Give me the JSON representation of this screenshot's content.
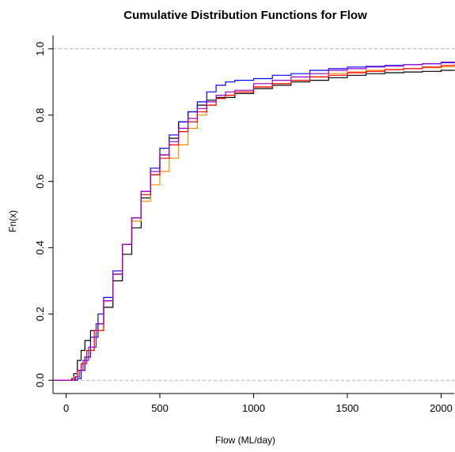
{
  "chart_data": {
    "type": "line",
    "title": "Cumulative Distribution Functions for Flow",
    "xlabel": "Flow (ML/day)",
    "ylabel": "Fn(x)",
    "xlim": [
      -70,
      2070
    ],
    "ylim": [
      -0.04,
      1.04
    ],
    "x_ticks": [
      0,
      500,
      1000,
      1500,
      2000
    ],
    "y_ticks": [
      0.0,
      0.2,
      0.4,
      0.6,
      0.8,
      1.0
    ],
    "reference_lines": [
      0,
      1
    ],
    "step": true,
    "series": [
      {
        "color": "#000000",
        "points": [
          [
            -70,
            0
          ],
          [
            20,
            0
          ],
          [
            30,
            0.005
          ],
          [
            40,
            0.02
          ],
          [
            60,
            0.06
          ],
          [
            80,
            0.09
          ],
          [
            100,
            0.12
          ],
          [
            130,
            0.15
          ],
          [
            160,
            0.17
          ],
          [
            200,
            0.22
          ],
          [
            250,
            0.3
          ],
          [
            300,
            0.38
          ],
          [
            350,
            0.46
          ],
          [
            400,
            0.55
          ],
          [
            450,
            0.62
          ],
          [
            500,
            0.68
          ],
          [
            550,
            0.73
          ],
          [
            600,
            0.78
          ],
          [
            650,
            0.81
          ],
          [
            700,
            0.83
          ],
          [
            750,
            0.845
          ],
          [
            800,
            0.853
          ],
          [
            900,
            0.865
          ],
          [
            1000,
            0.88
          ],
          [
            1100,
            0.89
          ],
          [
            1200,
            0.9
          ],
          [
            1300,
            0.905
          ],
          [
            1400,
            0.913
          ],
          [
            1500,
            0.92
          ],
          [
            1600,
            0.925
          ],
          [
            1700,
            0.928
          ],
          [
            1800,
            0.93
          ],
          [
            1900,
            0.932
          ],
          [
            2000,
            0.935
          ],
          [
            2070,
            0.937
          ]
        ]
      },
      {
        "color": "#0000ff",
        "points": [
          [
            -70,
            0
          ],
          [
            50,
            0
          ],
          [
            60,
            0.005
          ],
          [
            80,
            0.03
          ],
          [
            100,
            0.07
          ],
          [
            130,
            0.13
          ],
          [
            170,
            0.2
          ],
          [
            200,
            0.25
          ],
          [
            250,
            0.33
          ],
          [
            300,
            0.41
          ],
          [
            350,
            0.49
          ],
          [
            400,
            0.57
          ],
          [
            450,
            0.64
          ],
          [
            500,
            0.7
          ],
          [
            550,
            0.74
          ],
          [
            600,
            0.78
          ],
          [
            650,
            0.81
          ],
          [
            700,
            0.84
          ],
          [
            750,
            0.87
          ],
          [
            800,
            0.89
          ],
          [
            850,
            0.9
          ],
          [
            900,
            0.905
          ],
          [
            1000,
            0.91
          ],
          [
            1100,
            0.92
          ],
          [
            1200,
            0.925
          ],
          [
            1300,
            0.935
          ],
          [
            1400,
            0.94
          ],
          [
            1500,
            0.945
          ],
          [
            1600,
            0.947
          ],
          [
            1700,
            0.95
          ],
          [
            1800,
            0.952
          ],
          [
            1900,
            0.955
          ],
          [
            2000,
            0.958
          ],
          [
            2070,
            0.96
          ]
        ]
      },
      {
        "color": "#ff8c00",
        "points": [
          [
            -70,
            0
          ],
          [
            30,
            0
          ],
          [
            40,
            0.01
          ],
          [
            60,
            0.03
          ],
          [
            80,
            0.05
          ],
          [
            110,
            0.09
          ],
          [
            150,
            0.15
          ],
          [
            200,
            0.24
          ],
          [
            250,
            0.32
          ],
          [
            300,
            0.41
          ],
          [
            350,
            0.48
          ],
          [
            400,
            0.54
          ],
          [
            450,
            0.59
          ],
          [
            500,
            0.63
          ],
          [
            550,
            0.67
          ],
          [
            600,
            0.71
          ],
          [
            650,
            0.76
          ],
          [
            700,
            0.8
          ],
          [
            750,
            0.83
          ],
          [
            800,
            0.85
          ],
          [
            850,
            0.86
          ],
          [
            900,
            0.87
          ],
          [
            1000,
            0.885
          ],
          [
            1100,
            0.895
          ],
          [
            1200,
            0.905
          ],
          [
            1300,
            0.915
          ],
          [
            1400,
            0.925
          ],
          [
            1500,
            0.93
          ],
          [
            1600,
            0.935
          ],
          [
            1700,
            0.938
          ],
          [
            1800,
            0.94
          ],
          [
            1900,
            0.943
          ],
          [
            2000,
            0.946
          ],
          [
            2070,
            0.948
          ]
        ]
      },
      {
        "color": "#ff0000",
        "points": [
          [
            -70,
            0
          ],
          [
            35,
            0
          ],
          [
            45,
            0.01
          ],
          [
            60,
            0.03
          ],
          [
            80,
            0.05
          ],
          [
            110,
            0.09
          ],
          [
            150,
            0.15
          ],
          [
            200,
            0.24
          ],
          [
            250,
            0.32
          ],
          [
            300,
            0.41
          ],
          [
            350,
            0.49
          ],
          [
            400,
            0.56
          ],
          [
            450,
            0.62
          ],
          [
            500,
            0.67
          ],
          [
            550,
            0.71
          ],
          [
            600,
            0.75
          ],
          [
            650,
            0.78
          ],
          [
            700,
            0.81
          ],
          [
            750,
            0.83
          ],
          [
            800,
            0.85
          ],
          [
            850,
            0.86
          ],
          [
            900,
            0.87
          ],
          [
            1000,
            0.885
          ],
          [
            1100,
            0.895
          ],
          [
            1200,
            0.905
          ],
          [
            1300,
            0.915
          ],
          [
            1400,
            0.92
          ],
          [
            1500,
            0.928
          ],
          [
            1600,
            0.932
          ],
          [
            1700,
            0.937
          ],
          [
            1800,
            0.94
          ],
          [
            1900,
            0.945
          ],
          [
            2000,
            0.95
          ],
          [
            2070,
            0.953
          ]
        ]
      },
      {
        "color": "#9400d3",
        "points": [
          [
            -70,
            0
          ],
          [
            40,
            0
          ],
          [
            50,
            0.01
          ],
          [
            70,
            0.03
          ],
          [
            90,
            0.06
          ],
          [
            120,
            0.1
          ],
          [
            160,
            0.17
          ],
          [
            200,
            0.24
          ],
          [
            250,
            0.32
          ],
          [
            300,
            0.41
          ],
          [
            350,
            0.49
          ],
          [
            400,
            0.57
          ],
          [
            450,
            0.63
          ],
          [
            500,
            0.68
          ],
          [
            550,
            0.72
          ],
          [
            600,
            0.76
          ],
          [
            650,
            0.79
          ],
          [
            700,
            0.82
          ],
          [
            750,
            0.84
          ],
          [
            800,
            0.86
          ],
          [
            850,
            0.87
          ],
          [
            900,
            0.875
          ],
          [
            1000,
            0.895
          ],
          [
            1100,
            0.905
          ],
          [
            1200,
            0.915
          ],
          [
            1300,
            0.925
          ],
          [
            1400,
            0.935
          ],
          [
            1500,
            0.94
          ],
          [
            1600,
            0.945
          ],
          [
            1700,
            0.948
          ],
          [
            1800,
            0.952
          ],
          [
            1900,
            0.955
          ],
          [
            2000,
            0.96
          ],
          [
            2070,
            0.962
          ]
        ]
      }
    ]
  }
}
